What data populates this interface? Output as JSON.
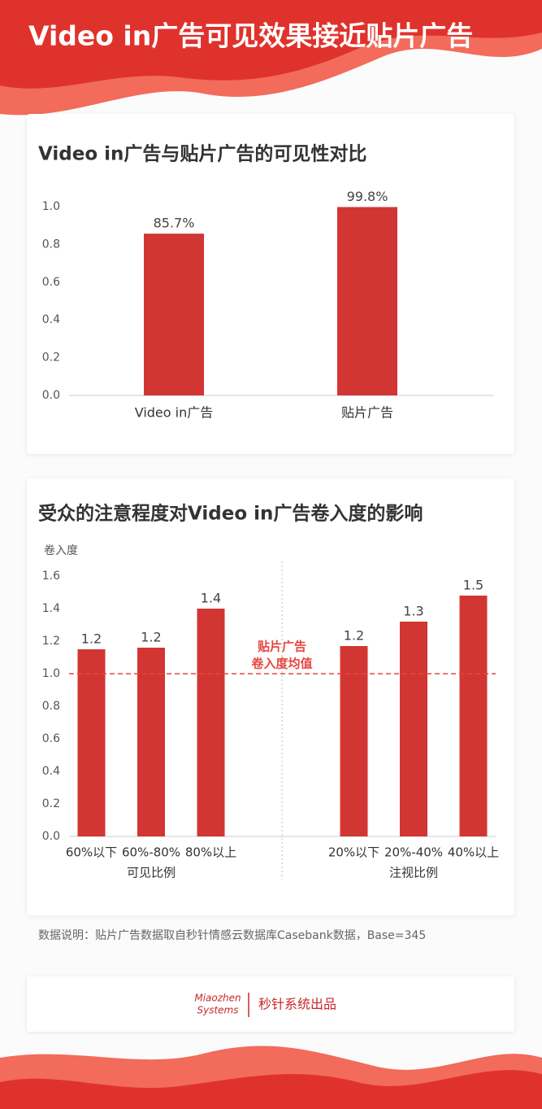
{
  "title": "Video in广告可见效果接近贴片广告",
  "chart_data": [
    {
      "type": "bar",
      "title": "Video in广告与贴片广告的可见性对比",
      "categories": [
        "Video in广告",
        "贴片广告"
      ],
      "values": [
        0.857,
        0.998
      ],
      "value_labels": [
        "85.7%",
        "99.8%"
      ],
      "color": "#d23632",
      "ylim": [
        0,
        1
      ],
      "yticks": [
        {
          "value": 0,
          "label": "0.0"
        },
        0.2,
        0.4,
        0.6,
        0.8,
        {
          "value": 1,
          "label": "1.0"
        }
      ]
    },
    {
      "type": "grouped-bar",
      "title": "受众的注意程度对Video in广告卷入度的影响",
      "ylabel": "卷入度",
      "groups": [
        {
          "name": "可见比例",
          "categories": [
            "60%以下",
            "60%-80%",
            "80%以上"
          ],
          "values": [
            1.15,
            1.16,
            1.4
          ],
          "value_labels": [
            "1.2",
            "1.2",
            "1.4"
          ]
        },
        {
          "name": "注视比例",
          "categories": [
            "20%以下",
            "20%-40%",
            "40%以上"
          ],
          "values": [
            1.17,
            1.32,
            1.48
          ],
          "value_labels": [
            "1.2",
            "1.3",
            "1.5"
          ]
        }
      ],
      "color": "#d23632",
      "reference": {
        "value": 1,
        "label": [
          "贴片广告",
          "卷入度均值"
        ],
        "color": "#e8463f"
      },
      "ylim": [
        0,
        1.6
      ],
      "yticks": [
        {
          "value": 0,
          "label": "0.0"
        },
        0.2,
        0.4,
        0.6,
        0.8,
        {
          "value": 1,
          "label": "1.0"
        },
        1.2,
        1.4,
        1.6
      ]
    }
  ],
  "note": "数据说明：贴片广告数据取自秒针情感云数据库Casebank数据，Base=345",
  "footer": {
    "logo": [
      "Miaozhen",
      "Systems"
    ],
    "text": "秒针系统出品"
  }
}
